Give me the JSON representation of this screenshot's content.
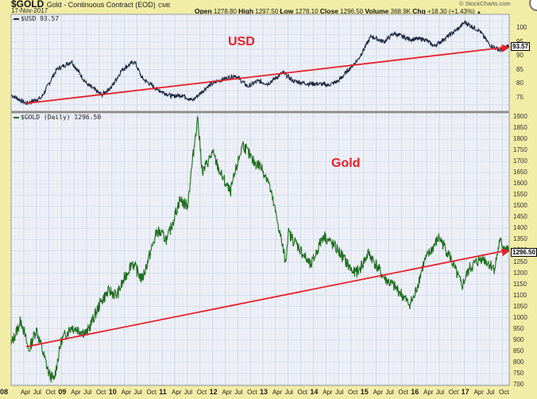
{
  "header": {
    "symbol": "$GOLD",
    "description": "Gold - Continuous Contract (EOD)",
    "exchange": "CME",
    "date": "17-Nov-2017",
    "open_label": "Open",
    "open": "1278.80",
    "high_label": "High",
    "high": "1297.50",
    "low_label": "Low",
    "low": "1278.10",
    "close_label": "Close",
    "close": "1296.50",
    "volume_label": "Volume",
    "volume": "368.9K",
    "chg_label": "Chg",
    "chg": "+18.30 (+1.43%)",
    "chg_arrow": "▲",
    "credit": "© StockCharts.com"
  },
  "colors": {
    "background": "#f2eda6",
    "plot_bg": "#eef0f7",
    "grid": "#c9d6e6",
    "usd_line": "#1a2440",
    "gold_line": "#1e6e1e",
    "trendline": "#e8202a"
  },
  "usd_panel": {
    "legend": "$USD 93.57",
    "annotation": "USD",
    "last_value": "93.57",
    "yticks": [
      "100",
      "95",
      "90",
      "85",
      "80",
      "75"
    ]
  },
  "gold_panel": {
    "legend": "$GOLD (Daily) 1296.50",
    "annotation": "Gold",
    "last_value": "1296.50",
    "yticks": [
      "1900",
      "1850",
      "1800",
      "1750",
      "1700",
      "1650",
      "1600",
      "1550",
      "1500",
      "1450",
      "1400",
      "1350",
      "1300",
      "1250",
      "1200",
      "1150",
      "1100",
      "1050",
      "1000",
      "950",
      "900",
      "850",
      "800",
      "750",
      "700"
    ]
  },
  "xaxis": {
    "labels": [
      {
        "t": "08",
        "yr": true
      },
      {
        "t": "Apr"
      },
      {
        "t": "Jul"
      },
      {
        "t": "Oct"
      },
      {
        "t": "09",
        "yr": true
      },
      {
        "t": "Apr"
      },
      {
        "t": "Jul"
      },
      {
        "t": "Oct"
      },
      {
        "t": "10",
        "yr": true
      },
      {
        "t": "Apr"
      },
      {
        "t": "Jul"
      },
      {
        "t": "Oct"
      },
      {
        "t": "11",
        "yr": true
      },
      {
        "t": "Apr"
      },
      {
        "t": "Jul"
      },
      {
        "t": "Oct"
      },
      {
        "t": "12",
        "yr": true
      },
      {
        "t": "Apr"
      },
      {
        "t": "Jul"
      },
      {
        "t": "Oct"
      },
      {
        "t": "13",
        "yr": true
      },
      {
        "t": "Apr"
      },
      {
        "t": "Jul"
      },
      {
        "t": "Oct"
      },
      {
        "t": "14",
        "yr": true
      },
      {
        "t": "Apr"
      },
      {
        "t": "Jul"
      },
      {
        "t": "Oct"
      },
      {
        "t": "15",
        "yr": true
      },
      {
        "t": "Apr"
      },
      {
        "t": "Jul"
      },
      {
        "t": "Oct"
      },
      {
        "t": "16",
        "yr": true
      },
      {
        "t": "Apr"
      },
      {
        "t": "Jul"
      },
      {
        "t": "Oct"
      },
      {
        "t": "17",
        "yr": true
      },
      {
        "t": "Apr"
      },
      {
        "t": "Jul"
      },
      {
        "t": "Oct"
      }
    ]
  },
  "chart_data": [
    {
      "type": "line",
      "title": "$USD 93.57",
      "annotation": "USD",
      "xlabel": "",
      "ylabel": "",
      "ylim": [
        72,
        104
      ],
      "grid": true,
      "x": [
        2008.0,
        2008.3,
        2008.6,
        2008.9,
        2009.2,
        2009.5,
        2009.8,
        2010.0,
        2010.2,
        2010.45,
        2010.6,
        2010.9,
        2011.2,
        2011.4,
        2011.6,
        2011.9,
        2012.1,
        2012.45,
        2012.7,
        2012.9,
        2013.1,
        2013.4,
        2013.6,
        2013.9,
        2014.1,
        2014.3,
        2014.5,
        2014.7,
        2014.9,
        2015.15,
        2015.4,
        2015.6,
        2015.9,
        2016.2,
        2016.4,
        2016.6,
        2016.9,
        2017.0,
        2017.3,
        2017.5,
        2017.7,
        2017.88
      ],
      "values": [
        76,
        73,
        75,
        85,
        88,
        80,
        76,
        79,
        85,
        88,
        82,
        78,
        75.5,
        76,
        74,
        79,
        81,
        83,
        79,
        81,
        80,
        84,
        81,
        80,
        80,
        79.5,
        81,
        85,
        89,
        97,
        95,
        98,
        96,
        96,
        93.5,
        96,
        100,
        102,
        99,
        94,
        92,
        93.57
      ],
      "trendline": {
        "x": [
          2008.3,
          2017.9
        ],
        "y": [
          73,
          93
        ]
      },
      "yticks": [
        75,
        80,
        85,
        90,
        95,
        100
      ],
      "last_value": 93.57
    },
    {
      "type": "line",
      "title": "$GOLD (Daily) 1296.50",
      "annotation": "Gold",
      "xlabel": "",
      "ylabel": "",
      "ylim": [
        680,
        1920
      ],
      "grid": true,
      "x": [
        2008.0,
        2008.2,
        2008.35,
        2008.5,
        2008.75,
        2008.85,
        2009.0,
        2009.2,
        2009.5,
        2009.8,
        2009.95,
        2010.1,
        2010.4,
        2010.6,
        2010.9,
        2011.1,
        2011.35,
        2011.5,
        2011.65,
        2011.7,
        2011.8,
        2012.0,
        2012.15,
        2012.35,
        2012.6,
        2012.8,
        2012.95,
        2013.1,
        2013.3,
        2013.45,
        2013.5,
        2013.7,
        2013.95,
        2014.2,
        2014.5,
        2014.8,
        2014.9,
        2015.1,
        2015.4,
        2015.7,
        2015.9,
        2016.0,
        2016.2,
        2016.5,
        2016.7,
        2016.95,
        2017.1,
        2017.35,
        2017.6,
        2017.7,
        2017.88
      ],
      "values": [
        880,
        990,
        850,
        950,
        750,
        720,
        900,
        960,
        930,
        1080,
        1120,
        1100,
        1250,
        1170,
        1390,
        1350,
        1530,
        1500,
        1800,
        1900,
        1650,
        1740,
        1650,
        1560,
        1780,
        1700,
        1680,
        1620,
        1420,
        1250,
        1380,
        1320,
        1230,
        1370,
        1300,
        1200,
        1210,
        1290,
        1180,
        1120,
        1060,
        1090,
        1250,
        1360,
        1280,
        1140,
        1220,
        1270,
        1220,
        1340,
        1296.5
      ],
      "trendline": {
        "x": [
          2008.3,
          2017.9
        ],
        "y": [
          870,
          1300
        ]
      },
      "yticks": [
        700,
        750,
        800,
        850,
        900,
        950,
        1000,
        1050,
        1100,
        1150,
        1200,
        1250,
        1300,
        1350,
        1400,
        1450,
        1500,
        1550,
        1600,
        1650,
        1700,
        1750,
        1800,
        1850,
        1900
      ],
      "last_value": 1296.5
    }
  ]
}
